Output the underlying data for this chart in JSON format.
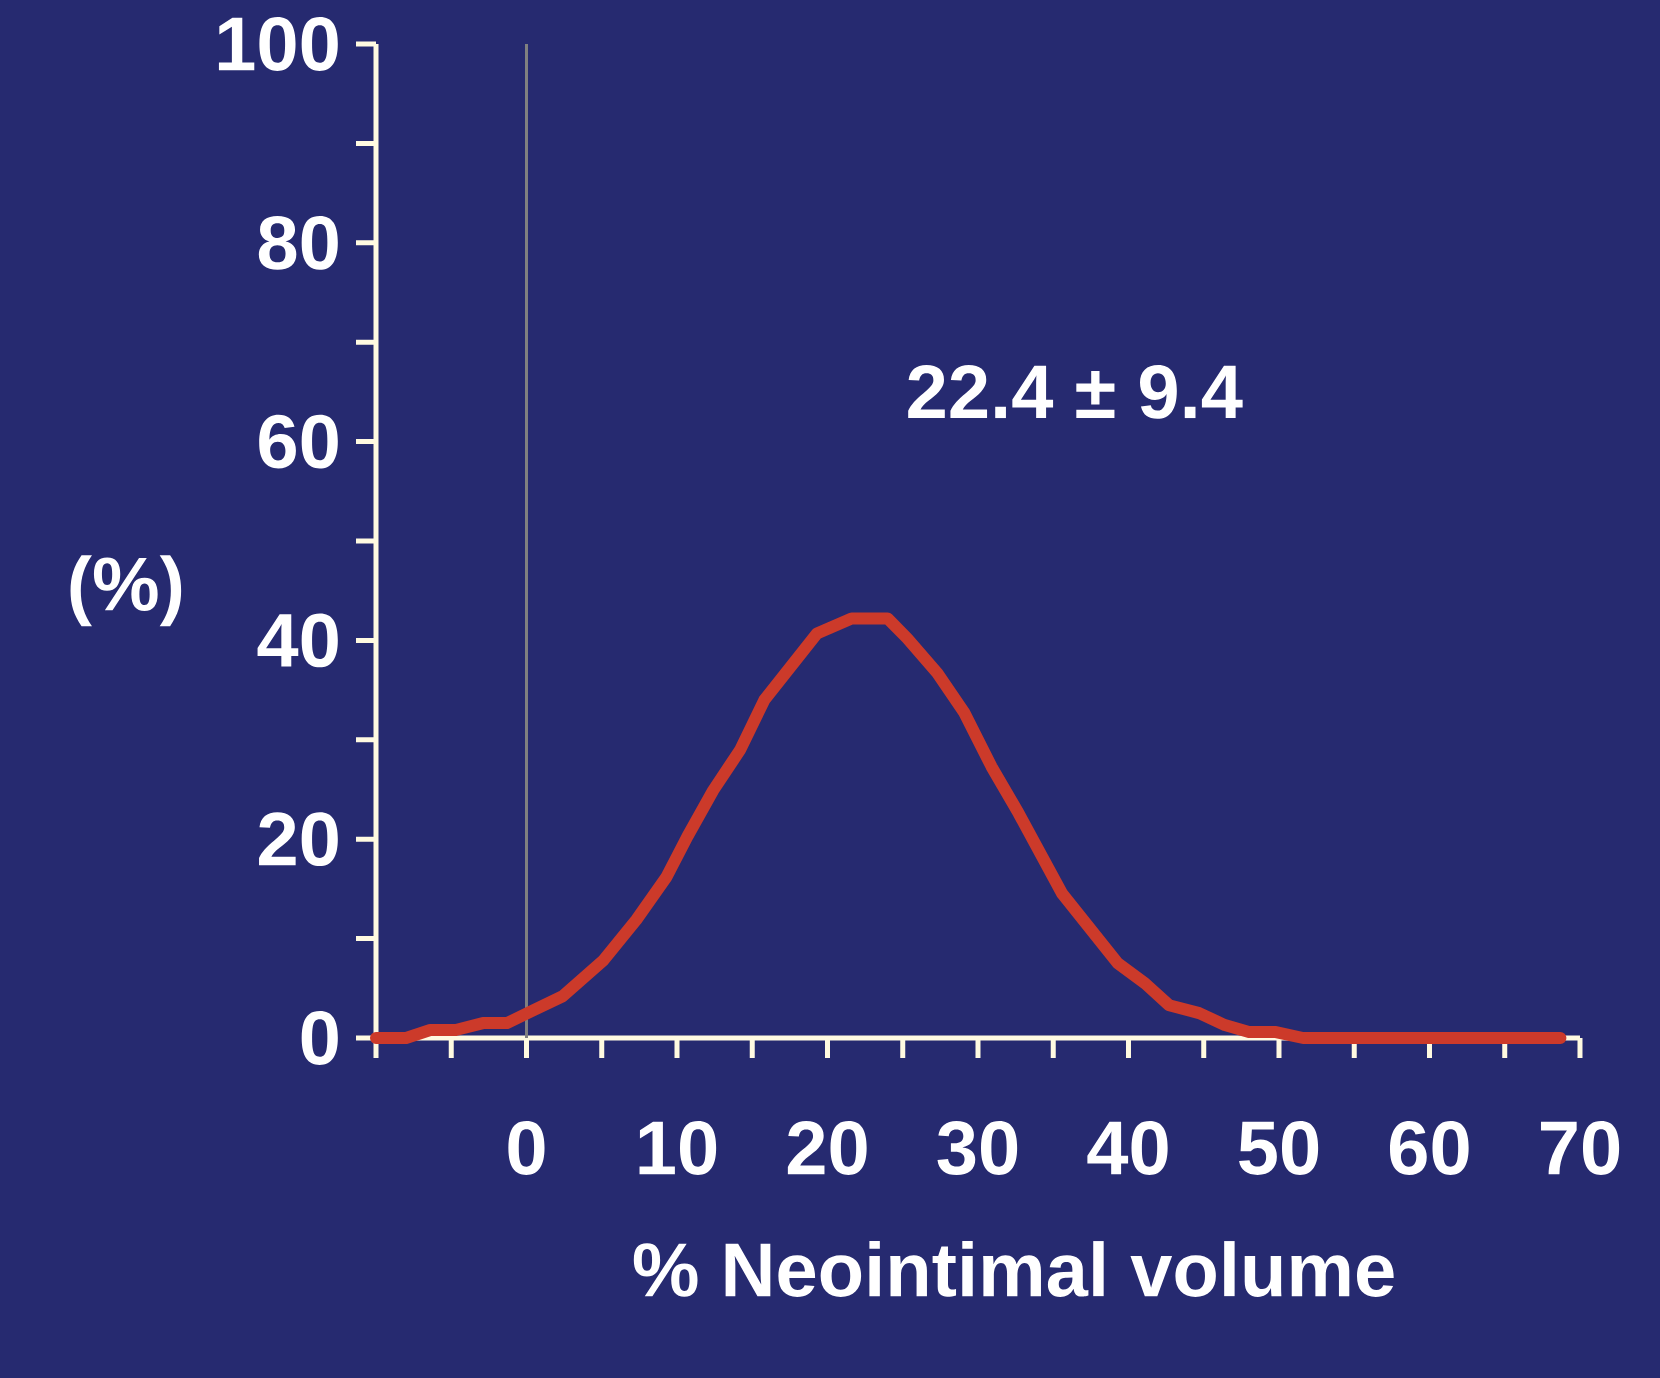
{
  "chart_data": {
    "type": "line",
    "xlabel": "% Neointimal volume",
    "ylabel": "(%)",
    "annotations": [
      "22.4 ± 9.4"
    ],
    "xlim": [
      -10,
      70
    ],
    "ylim": [
      0,
      100
    ],
    "xticks": [
      {
        "value": -10,
        "label": null
      },
      {
        "value": -5,
        "label": null
      },
      0,
      {
        "value": 5,
        "label": null
      },
      10,
      {
        "value": 15,
        "label": null
      },
      20,
      {
        "value": 25,
        "label": null
      },
      30,
      {
        "value": 35,
        "label": null
      },
      40,
      {
        "value": 45,
        "label": null
      },
      50,
      {
        "value": 55,
        "label": null
      },
      60,
      {
        "value": 65,
        "label": null
      },
      70
    ],
    "yticks": [
      0,
      {
        "value": 10,
        "label": null
      },
      20,
      {
        "value": 30,
        "label": null
      },
      40,
      {
        "value": 50,
        "label": null
      },
      60,
      {
        "value": 70,
        "label": null
      },
      80,
      {
        "value": 90,
        "label": null
      },
      100
    ],
    "grid": false,
    "marker": "none",
    "line_style": "solid",
    "ref_lines": [
      {
        "axis": "x",
        "value": 0,
        "color": "#808080"
      }
    ],
    "series": [
      {
        "color": "#cc3a2a",
        "x": [
          -10,
          -8,
          -6.4,
          -4.7,
          -2.9,
          -1.3,
          0.2,
          2.4,
          5.1,
          7.3,
          9.3,
          10.7,
          12.4,
          14.2,
          15.8,
          19.3,
          21.6,
          24,
          25.3,
          27.3,
          29.1,
          30.9,
          32.7,
          35.6,
          39.3,
          41.1,
          42.7,
          44.7,
          46.4,
          48,
          49.8,
          51.6,
          60,
          68.7
        ],
        "values": [
          0,
          0,
          0.8,
          0.8,
          1.5,
          1.5,
          2.6,
          4.2,
          7.8,
          11.9,
          16.2,
          20.3,
          24.9,
          29,
          34,
          40.7,
          42.2,
          42.2,
          40.2,
          36.7,
          32.7,
          27.3,
          22.6,
          14.5,
          7.5,
          5.5,
          3.3,
          2.5,
          1.3,
          0.6,
          0.6,
          0,
          0,
          0
        ]
      }
    ]
  }
}
